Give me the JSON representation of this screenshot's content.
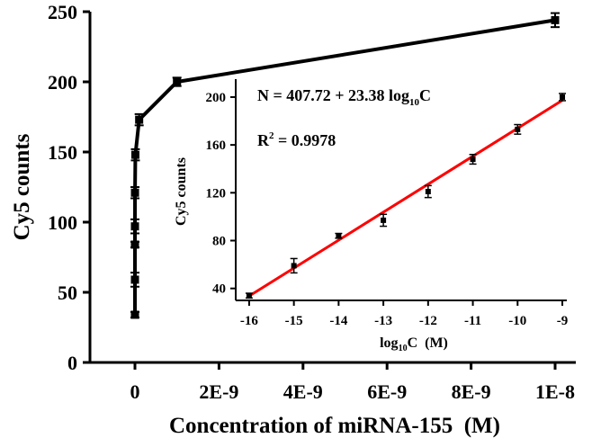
{
  "chart_data": [
    {
      "type": "line",
      "xlabel": "Concentration of miRNA-155  (M)",
      "ylabel": "Cy5 counts",
      "xlim": [
        0,
        1e-08
      ],
      "ylim": [
        0,
        250
      ],
      "x_tick_labels": [
        "0",
        "2E-9",
        "4E-9",
        "6E-9",
        "8E-9",
        "1E-8"
      ],
      "x_tick_values": [
        0,
        2e-09,
        4e-09,
        6e-09,
        8e-09,
        1e-08
      ],
      "y_ticks": [
        0,
        50,
        100,
        150,
        200,
        250
      ],
      "grid": false,
      "series": [
        {
          "x": [
            1e-16,
            1e-15,
            1e-14,
            1e-13,
            1e-12,
            1e-11,
            1e-10,
            1e-09,
            1e-08
          ],
          "y": [
            34,
            59,
            84,
            97,
            121,
            148,
            173,
            200,
            244
          ],
          "err": [
            2,
            5,
            2,
            5,
            4,
            4,
            4,
            3,
            5
          ]
        }
      ]
    },
    {
      "type": "scatter",
      "xlabel": "log10C (M)",
      "ylabel": "Cy5 counts",
      "xlim": [
        -16.3,
        -8.9
      ],
      "ylim": [
        30,
        215
      ],
      "x_ticks": [
        -16,
        -15,
        -14,
        -13,
        -12,
        -11,
        -10,
        -9
      ],
      "y_ticks": [
        40,
        80,
        120,
        160,
        200
      ],
      "grid": false,
      "series": [
        {
          "x": [
            -16,
            -15,
            -14,
            -13,
            -12,
            -11,
            -10,
            -9
          ],
          "y": [
            34,
            59,
            84,
            97,
            121,
            148,
            173,
            200
          ],
          "err": [
            2,
            6,
            2,
            5,
            5,
            4,
            4,
            3
          ]
        }
      ],
      "fit": {
        "slope": 23.38,
        "intercept": 407.72,
        "equation_main": "N = 407.72 + 23.38 log",
        "equation_sub": "10",
        "equation_tail": "C",
        "r2_label": "R",
        "r2_sup": "2",
        "r2_value": " = 0.9978",
        "color": "#ff0000"
      },
      "xlabel_parts": {
        "main": "log",
        "sub": "10",
        "tail": "C  (M)"
      }
    }
  ]
}
